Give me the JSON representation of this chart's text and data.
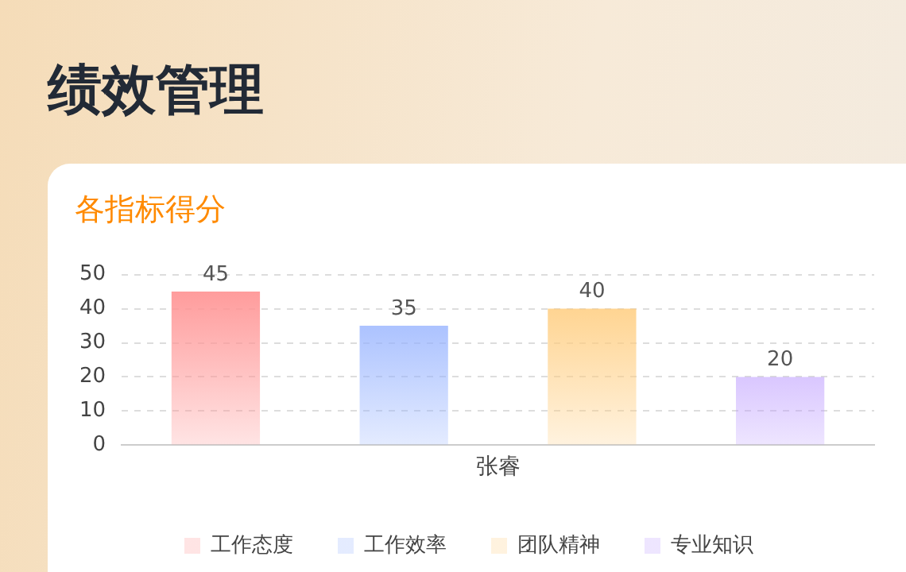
{
  "chart_data": {
    "type": "bar",
    "title": "绩效管理",
    "subtitle": "各指标得分",
    "categories": [
      "张睿"
    ],
    "series": [
      {
        "name": "工作态度",
        "color": "#ff9494",
        "values": [
          45
        ]
      },
      {
        "name": "工作效率",
        "color": "#94b1ff",
        "values": [
          35
        ]
      },
      {
        "name": "团队精神",
        "color": "#ffcd7f",
        "values": [
          40
        ]
      },
      {
        "name": "专业知识",
        "color": "#bb99ff",
        "values": [
          20
        ]
      }
    ],
    "ylim": [
      0,
      50
    ],
    "yticks": [
      0,
      10,
      20,
      30,
      40,
      50
    ],
    "grid": "y",
    "legend": "bottom",
    "data_labels": true
  }
}
